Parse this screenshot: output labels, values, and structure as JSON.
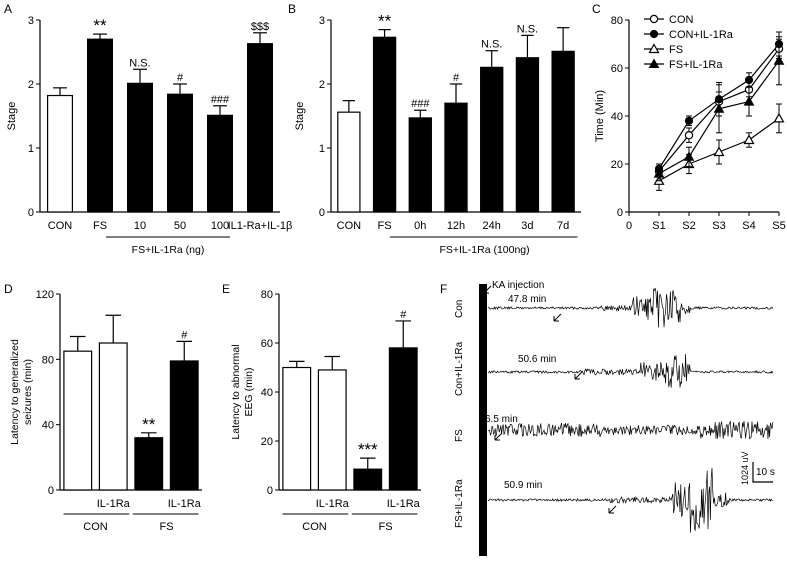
{
  "panels": {
    "a": "A",
    "b": "B",
    "c": "C",
    "d": "D",
    "e": "E",
    "f": "F"
  },
  "chart_data": [
    {
      "panel": "A",
      "type": "bar",
      "ylabel": "Stage",
      "ylim": [
        0,
        3
      ],
      "yticks": [
        "0",
        "1",
        "2",
        "3"
      ],
      "categories": [
        "CON",
        "FS",
        "10",
        "50",
        "100",
        "IL1-Ra+IL-1β"
      ],
      "values": [
        1.82,
        2.7,
        2.01,
        1.84,
        1.51,
        2.63
      ],
      "errors": [
        0.12,
        0.08,
        0.22,
        0.16,
        0.15,
        0.17
      ],
      "fills": [
        "white",
        "black",
        "black",
        "black",
        "black",
        "black"
      ],
      "significance": [
        "",
        "**",
        "N.S.",
        "#",
        "###",
        "$$$"
      ],
      "group_label": "FS+IL-1Ra (ng)"
    },
    {
      "panel": "B",
      "type": "bar",
      "ylabel": "Stage",
      "ylim": [
        0,
        3
      ],
      "yticks": [
        "0",
        "1",
        "2",
        "3"
      ],
      "categories": [
        "CON",
        "FS",
        "0h",
        "12h",
        "24h",
        "3d",
        "7d"
      ],
      "values": [
        1.56,
        2.73,
        1.47,
        1.7,
        2.26,
        2.41,
        2.51
      ],
      "errors": [
        0.18,
        0.12,
        0.12,
        0.3,
        0.26,
        0.35,
        0.37
      ],
      "fills": [
        "white",
        "black",
        "black",
        "black",
        "black",
        "black",
        "black"
      ],
      "significance": [
        "",
        "**",
        "###",
        "#",
        "N.S.",
        "N.S.",
        ""
      ],
      "group_label": "FS+IL-1Ra (100ng)"
    },
    {
      "panel": "C",
      "type": "line",
      "ylabel": "Time (Min)",
      "ylim": [
        0,
        80
      ],
      "yticks": [
        "0",
        "20",
        "40",
        "60",
        "80"
      ],
      "xticks": [
        "0",
        "S1",
        "S2",
        "S3",
        "S4",
        "S5"
      ],
      "categories": [
        "S1",
        "S2",
        "S3",
        "S4",
        "S5"
      ],
      "series": [
        {
          "name": "CON",
          "marker": "open-circle",
          "values": [
            17,
            32,
            46,
            51,
            68
          ],
          "errors": [
            2,
            3,
            4,
            3,
            4
          ]
        },
        {
          "name": "CON+IL-1Ra",
          "marker": "filled-circle",
          "values": [
            18,
            38,
            47,
            55,
            70
          ],
          "errors": [
            2,
            2,
            7,
            3,
            5
          ]
        },
        {
          "name": "FS",
          "marker": "open-triangle",
          "values": [
            13,
            20,
            25,
            30,
            39
          ],
          "errors": [
            4,
            4,
            5,
            3,
            6
          ]
        },
        {
          "name": "FS+IL-1Ra",
          "marker": "filled-triangle",
          "values": [
            16,
            23,
            43,
            46,
            63
          ],
          "errors": [
            3,
            4,
            10,
            6,
            10
          ]
        }
      ],
      "annotation": "**"
    },
    {
      "panel": "D",
      "type": "bar",
      "ylabel_lines": [
        "Latency to generalized",
        "seizures (min)"
      ],
      "ylim": [
        0,
        120
      ],
      "yticks": [
        "0",
        "40",
        "80",
        "120"
      ],
      "categories": [
        "",
        "IL-1Ra",
        "",
        "IL-1Ra"
      ],
      "values": [
        85,
        90,
        32,
        79
      ],
      "errors": [
        9,
        17,
        3,
        12
      ],
      "fills": [
        "white",
        "white",
        "black",
        "black"
      ],
      "significance": [
        "",
        "",
        "**",
        "#"
      ],
      "groups": [
        "CON",
        "FS"
      ]
    },
    {
      "panel": "E",
      "type": "bar",
      "ylabel_lines": [
        "Latency to abnormal",
        "EEG (min)"
      ],
      "ylim": [
        0,
        80
      ],
      "yticks": [
        "0",
        "20",
        "40",
        "60",
        "80"
      ],
      "categories": [
        "",
        "IL-1Ra",
        "",
        "IL-1Ra"
      ],
      "values": [
        50,
        49,
        8.5,
        58
      ],
      "errors": [
        2.5,
        5.5,
        4.5,
        11
      ],
      "fills": [
        "white",
        "white",
        "black",
        "black"
      ],
      "significance": [
        "",
        "",
        "***",
        "#"
      ],
      "groups": [
        "CON",
        "FS"
      ]
    }
  ],
  "eeg": {
    "injection_label": "KA injection",
    "traces": [
      {
        "name": "Con",
        "time": "47.8 min"
      },
      {
        "name": "Con+IL-1Ra",
        "time": "50.6 min"
      },
      {
        "name": "FS",
        "time": "6.5 min"
      },
      {
        "name": "FS+IL-1Ra",
        "time": "50.9 min"
      }
    ],
    "scale_v": "1024 uV",
    "scale_t": "10 s"
  }
}
